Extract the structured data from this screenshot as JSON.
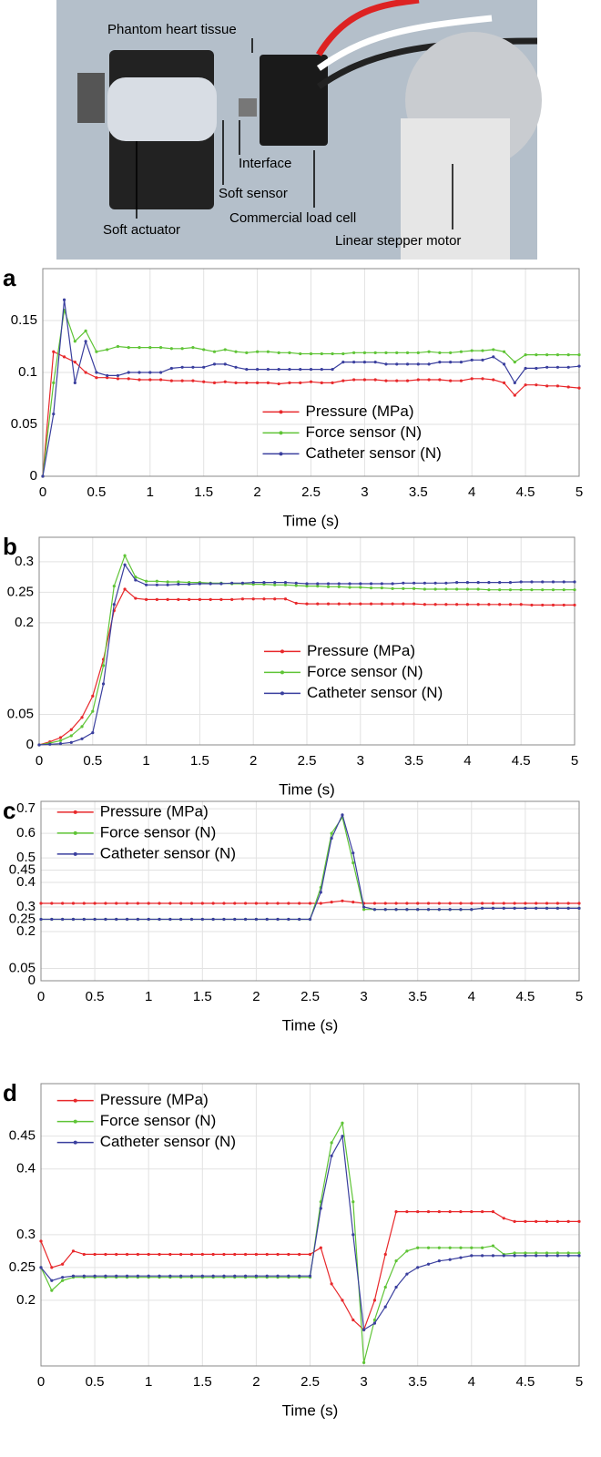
{
  "photo": {
    "labels": [
      "Phantom heart tissue",
      "Interface",
      "Soft sensor",
      "Soft actuator",
      "Commercial load cell",
      "Linear stepper motor"
    ]
  },
  "chart_data": [
    {
      "type": "line",
      "panel": "a",
      "xlabel": "Time (s)",
      "legend": "lower right",
      "grid": true,
      "xlim": [
        0,
        5
      ],
      "xticks": [
        0,
        0.5,
        1,
        1.5,
        2,
        2.5,
        3,
        3.5,
        4,
        4.5,
        5
      ],
      "ylim": [
        0,
        0.2
      ],
      "yticks": [
        0,
        0.05,
        0.1,
        0.15
      ],
      "x": [
        0,
        0.1,
        0.2,
        0.3,
        0.4,
        0.5,
        0.6,
        0.7,
        0.8,
        0.9,
        1,
        1.1,
        1.2,
        1.3,
        1.4,
        1.5,
        1.6,
        1.7,
        1.8,
        1.9,
        2,
        2.1,
        2.2,
        2.3,
        2.4,
        2.5,
        2.6,
        2.7,
        2.8,
        2.9,
        3,
        3.1,
        3.2,
        3.3,
        3.4,
        3.5,
        3.6,
        3.7,
        3.8,
        3.9,
        4,
        4.1,
        4.2,
        4.3,
        4.4,
        4.5,
        4.6,
        4.7,
        4.8,
        4.9,
        5
      ],
      "series": [
        {
          "name": "Pressure (MPa)",
          "color": "#e8282b",
          "values": [
            0,
            0.12,
            0.115,
            0.11,
            0.1,
            0.095,
            0.095,
            0.094,
            0.094,
            0.093,
            0.093,
            0.093,
            0.092,
            0.092,
            0.092,
            0.091,
            0.09,
            0.091,
            0.09,
            0.09,
            0.09,
            0.09,
            0.089,
            0.09,
            0.09,
            0.091,
            0.09,
            0.09,
            0.092,
            0.093,
            0.093,
            0.093,
            0.092,
            0.092,
            0.092,
            0.093,
            0.093,
            0.093,
            0.092,
            0.092,
            0.094,
            0.094,
            0.093,
            0.09,
            0.078,
            0.088,
            0.088,
            0.087,
            0.087,
            0.086,
            0.085
          ]
        },
        {
          "name": "Force sensor (N)",
          "color": "#5fc436",
          "values": [
            0,
            0.09,
            0.16,
            0.13,
            0.14,
            0.12,
            0.122,
            0.125,
            0.124,
            0.124,
            0.124,
            0.124,
            0.123,
            0.123,
            0.124,
            0.122,
            0.12,
            0.122,
            0.12,
            0.119,
            0.12,
            0.12,
            0.119,
            0.119,
            0.118,
            0.118,
            0.118,
            0.118,
            0.118,
            0.119,
            0.119,
            0.119,
            0.119,
            0.119,
            0.119,
            0.119,
            0.12,
            0.119,
            0.119,
            0.12,
            0.121,
            0.121,
            0.122,
            0.12,
            0.11,
            0.117,
            0.117,
            0.117,
            0.117,
            0.117,
            0.117
          ]
        },
        {
          "name": "Catheter sensor (N)",
          "color": "#3a3f9e",
          "values": [
            0,
            0.06,
            0.17,
            0.09,
            0.13,
            0.1,
            0.097,
            0.097,
            0.1,
            0.1,
            0.1,
            0.1,
            0.104,
            0.105,
            0.105,
            0.105,
            0.108,
            0.108,
            0.105,
            0.103,
            0.103,
            0.103,
            0.103,
            0.103,
            0.103,
            0.103,
            0.103,
            0.103,
            0.11,
            0.11,
            0.11,
            0.11,
            0.108,
            0.108,
            0.108,
            0.108,
            0.108,
            0.11,
            0.11,
            0.11,
            0.112,
            0.112,
            0.115,
            0.108,
            0.09,
            0.104,
            0.104,
            0.105,
            0.105,
            0.105,
            0.106
          ]
        }
      ]
    },
    {
      "type": "line",
      "panel": "b",
      "xlabel": "Time (s)",
      "legend": "center right",
      "grid": true,
      "xlim": [
        0,
        5
      ],
      "xticks": [
        0,
        0.5,
        1,
        1.5,
        2,
        2.5,
        3,
        3.5,
        4,
        4.5,
        5
      ],
      "ylim": [
        0,
        0.34
      ],
      "yticks": [
        0,
        0.05,
        0.2,
        0.25,
        0.3
      ],
      "x": [
        0,
        0.1,
        0.2,
        0.3,
        0.4,
        0.5,
        0.6,
        0.7,
        0.8,
        0.9,
        1,
        1.1,
        1.2,
        1.3,
        1.4,
        1.5,
        1.6,
        1.7,
        1.8,
        1.9,
        2,
        2.1,
        2.2,
        2.3,
        2.4,
        2.5,
        2.6,
        2.7,
        2.8,
        2.9,
        3,
        3.1,
        3.2,
        3.3,
        3.4,
        3.5,
        3.6,
        3.7,
        3.8,
        3.9,
        4,
        4.1,
        4.2,
        4.3,
        4.4,
        4.5,
        4.6,
        4.7,
        4.8,
        4.9,
        5
      ],
      "series": [
        {
          "name": "Pressure (MPa)",
          "color": "#e8282b",
          "values": [
            0,
            0.005,
            0.012,
            0.025,
            0.045,
            0.08,
            0.14,
            0.22,
            0.255,
            0.24,
            0.238,
            0.238,
            0.238,
            0.238,
            0.238,
            0.238,
            0.238,
            0.238,
            0.238,
            0.239,
            0.239,
            0.239,
            0.239,
            0.239,
            0.232,
            0.231,
            0.231,
            0.231,
            0.231,
            0.231,
            0.231,
            0.231,
            0.231,
            0.231,
            0.231,
            0.231,
            0.23,
            0.23,
            0.23,
            0.23,
            0.23,
            0.23,
            0.23,
            0.23,
            0.23,
            0.23,
            0.229,
            0.229,
            0.229,
            0.229,
            0.229
          ]
        },
        {
          "name": "Force sensor (N)",
          "color": "#5fc436",
          "values": [
            0,
            0.003,
            0.007,
            0.015,
            0.03,
            0.055,
            0.13,
            0.26,
            0.31,
            0.275,
            0.268,
            0.268,
            0.267,
            0.267,
            0.266,
            0.266,
            0.265,
            0.265,
            0.264,
            0.264,
            0.263,
            0.263,
            0.262,
            0.262,
            0.261,
            0.26,
            0.26,
            0.259,
            0.259,
            0.258,
            0.258,
            0.257,
            0.257,
            0.256,
            0.256,
            0.256,
            0.255,
            0.255,
            0.255,
            0.255,
            0.255,
            0.255,
            0.254,
            0.254,
            0.254,
            0.254,
            0.254,
            0.254,
            0.254,
            0.254,
            0.254
          ]
        },
        {
          "name": "Catheter sensor (N)",
          "color": "#3a3f9e",
          "values": [
            0,
            0.001,
            0.002,
            0.004,
            0.01,
            0.02,
            0.1,
            0.23,
            0.295,
            0.27,
            0.262,
            0.262,
            0.262,
            0.263,
            0.263,
            0.264,
            0.264,
            0.264,
            0.265,
            0.265,
            0.266,
            0.266,
            0.266,
            0.266,
            0.265,
            0.264,
            0.264,
            0.264,
            0.264,
            0.264,
            0.264,
            0.264,
            0.264,
            0.264,
            0.265,
            0.265,
            0.265,
            0.265,
            0.265,
            0.266,
            0.266,
            0.266,
            0.266,
            0.266,
            0.266,
            0.267,
            0.267,
            0.267,
            0.267,
            0.267,
            0.267
          ]
        }
      ]
    },
    {
      "type": "line",
      "panel": "c",
      "xlabel": "Time (s)",
      "legend": "upper left",
      "grid": true,
      "xlim": [
        0,
        5
      ],
      "xticks": [
        0,
        0.5,
        1,
        1.5,
        2,
        2.5,
        3,
        3.5,
        4,
        4.5,
        5
      ],
      "ylim": [
        0,
        0.73
      ],
      "yticks": [
        0,
        0.05,
        0.2,
        0.25,
        0.3,
        0.4,
        0.45,
        0.5,
        0.6,
        0.7
      ],
      "x": [
        0,
        0.1,
        0.2,
        0.3,
        0.4,
        0.5,
        0.6,
        0.7,
        0.8,
        0.9,
        1,
        1.1,
        1.2,
        1.3,
        1.4,
        1.5,
        1.6,
        1.7,
        1.8,
        1.9,
        2,
        2.1,
        2.2,
        2.3,
        2.4,
        2.5,
        2.6,
        2.7,
        2.8,
        2.9,
        3,
        3.1,
        3.2,
        3.3,
        3.4,
        3.5,
        3.6,
        3.7,
        3.8,
        3.9,
        4,
        4.1,
        4.2,
        4.3,
        4.4,
        4.5,
        4.6,
        4.7,
        4.8,
        4.9,
        5
      ],
      "series": [
        {
          "name": "Pressure (MPa)",
          "color": "#e8282b",
          "values": [
            0.315,
            0.315,
            0.315,
            0.315,
            0.315,
            0.315,
            0.315,
            0.315,
            0.315,
            0.315,
            0.315,
            0.315,
            0.315,
            0.315,
            0.315,
            0.315,
            0.315,
            0.315,
            0.315,
            0.315,
            0.315,
            0.315,
            0.315,
            0.315,
            0.315,
            0.315,
            0.315,
            0.32,
            0.325,
            0.32,
            0.315,
            0.315,
            0.315,
            0.315,
            0.315,
            0.315,
            0.315,
            0.315,
            0.315,
            0.315,
            0.315,
            0.315,
            0.315,
            0.315,
            0.315,
            0.315,
            0.315,
            0.315,
            0.315,
            0.315,
            0.315
          ]
        },
        {
          "name": "Force sensor (N)",
          "color": "#5fc436",
          "values": [
            0.25,
            0.25,
            0.25,
            0.25,
            0.25,
            0.25,
            0.25,
            0.25,
            0.25,
            0.25,
            0.25,
            0.25,
            0.25,
            0.25,
            0.25,
            0.25,
            0.25,
            0.25,
            0.25,
            0.25,
            0.25,
            0.25,
            0.25,
            0.25,
            0.25,
            0.25,
            0.38,
            0.6,
            0.665,
            0.48,
            0.29,
            0.29,
            0.29,
            0.29,
            0.29,
            0.29,
            0.29,
            0.29,
            0.29,
            0.29,
            0.29,
            0.295,
            0.295,
            0.295,
            0.295,
            0.295,
            0.295,
            0.295,
            0.295,
            0.295,
            0.295
          ]
        },
        {
          "name": "Catheter sensor (N)",
          "color": "#3a3f9e",
          "values": [
            0.25,
            0.25,
            0.25,
            0.25,
            0.25,
            0.25,
            0.25,
            0.25,
            0.25,
            0.25,
            0.25,
            0.25,
            0.25,
            0.25,
            0.25,
            0.25,
            0.25,
            0.25,
            0.25,
            0.25,
            0.25,
            0.25,
            0.25,
            0.25,
            0.25,
            0.25,
            0.36,
            0.58,
            0.675,
            0.52,
            0.3,
            0.29,
            0.29,
            0.29,
            0.29,
            0.29,
            0.29,
            0.29,
            0.29,
            0.29,
            0.29,
            0.295,
            0.295,
            0.295,
            0.295,
            0.295,
            0.295,
            0.295,
            0.295,
            0.295,
            0.295
          ]
        }
      ]
    },
    {
      "type": "line",
      "panel": "d",
      "xlabel": "Time (s)",
      "legend": "upper left",
      "grid": true,
      "xlim": [
        0,
        5
      ],
      "xticks": [
        0,
        0.5,
        1,
        1.5,
        2,
        2.5,
        3,
        3.5,
        4,
        4.5,
        5
      ],
      "ylim": [
        0.1,
        0.53
      ],
      "yticks": [
        0.2,
        0.25,
        0.3,
        0.4,
        0.45
      ],
      "x": [
        0,
        0.1,
        0.2,
        0.3,
        0.4,
        0.5,
        0.6,
        0.7,
        0.8,
        0.9,
        1,
        1.1,
        1.2,
        1.3,
        1.4,
        1.5,
        1.6,
        1.7,
        1.8,
        1.9,
        2,
        2.1,
        2.2,
        2.3,
        2.4,
        2.5,
        2.6,
        2.7,
        2.8,
        2.9,
        3,
        3.1,
        3.2,
        3.3,
        3.4,
        3.5,
        3.6,
        3.7,
        3.8,
        3.9,
        4,
        4.1,
        4.2,
        4.3,
        4.4,
        4.5,
        4.6,
        4.7,
        4.8,
        4.9,
        5
      ],
      "series": [
        {
          "name": "Pressure (MPa)",
          "color": "#e8282b",
          "values": [
            0.29,
            0.25,
            0.255,
            0.275,
            0.27,
            0.27,
            0.27,
            0.27,
            0.27,
            0.27,
            0.27,
            0.27,
            0.27,
            0.27,
            0.27,
            0.27,
            0.27,
            0.27,
            0.27,
            0.27,
            0.27,
            0.27,
            0.27,
            0.27,
            0.27,
            0.27,
            0.28,
            0.225,
            0.2,
            0.17,
            0.155,
            0.2,
            0.27,
            0.335,
            0.335,
            0.335,
            0.335,
            0.335,
            0.335,
            0.335,
            0.335,
            0.335,
            0.335,
            0.325,
            0.32,
            0.32,
            0.32,
            0.32,
            0.32,
            0.32,
            0.32
          ]
        },
        {
          "name": "Force sensor (N)",
          "color": "#5fc436",
          "values": [
            0.25,
            0.215,
            0.23,
            0.235,
            0.235,
            0.235,
            0.235,
            0.235,
            0.235,
            0.235,
            0.235,
            0.235,
            0.235,
            0.235,
            0.235,
            0.235,
            0.235,
            0.235,
            0.235,
            0.235,
            0.235,
            0.235,
            0.235,
            0.235,
            0.235,
            0.235,
            0.35,
            0.44,
            0.47,
            0.35,
            0.105,
            0.17,
            0.22,
            0.26,
            0.275,
            0.28,
            0.28,
            0.28,
            0.28,
            0.28,
            0.28,
            0.28,
            0.283,
            0.27,
            0.272,
            0.272,
            0.272,
            0.272,
            0.272,
            0.272,
            0.272
          ]
        },
        {
          "name": "Catheter sensor (N)",
          "color": "#3a3f9e",
          "values": [
            0.25,
            0.23,
            0.235,
            0.237,
            0.237,
            0.237,
            0.237,
            0.237,
            0.237,
            0.237,
            0.237,
            0.237,
            0.237,
            0.237,
            0.237,
            0.237,
            0.237,
            0.237,
            0.237,
            0.237,
            0.237,
            0.237,
            0.237,
            0.237,
            0.237,
            0.237,
            0.34,
            0.42,
            0.45,
            0.3,
            0.155,
            0.165,
            0.19,
            0.22,
            0.24,
            0.25,
            0.255,
            0.26,
            0.262,
            0.265,
            0.268,
            0.268,
            0.268,
            0.268,
            0.268,
            0.268,
            0.268,
            0.268,
            0.268,
            0.268,
            0.268
          ]
        }
      ]
    }
  ]
}
